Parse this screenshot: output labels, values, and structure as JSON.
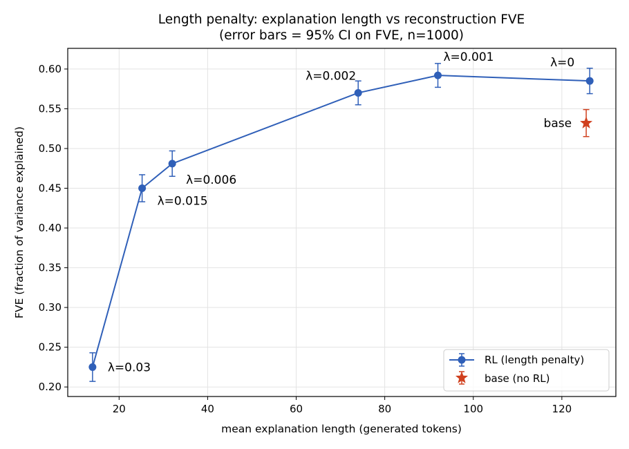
{
  "chart_data": {
    "type": "line",
    "title": "Length penalty: explanation length vs reconstruction FVE",
    "subtitle": "(error bars = 95% CI on FVE, n=1000)",
    "xlabel": "mean explanation length (generated tokens)",
    "ylabel": "FVE (fraction of variance explained)",
    "xlim": [
      8.4,
      132.2
    ],
    "ylim": [
      0.188,
      0.626
    ],
    "xticks": [
      20,
      40,
      60,
      80,
      100,
      120
    ],
    "yticks": [
      0.2,
      0.25,
      0.3,
      0.35,
      0.4,
      0.45,
      0.5,
      0.55,
      0.6
    ],
    "xtick_labels": [
      "20",
      "40",
      "60",
      "80",
      "100",
      "120"
    ],
    "ytick_labels": [
      "0.20",
      "0.25",
      "0.30",
      "0.35",
      "0.40",
      "0.45",
      "0.50",
      "0.55",
      "0.60"
    ],
    "grid": true,
    "legend_position": "lower-right",
    "series": [
      {
        "name": "RL (length penalty)",
        "marker": "circle",
        "color": "#2f5fb8",
        "points": [
          {
            "x": 14.0,
            "y": 0.225,
            "ci_low": 0.207,
            "ci_high": 0.243,
            "label": "λ=0.03"
          },
          {
            "x": 25.2,
            "y": 0.45,
            "ci_low": 0.433,
            "ci_high": 0.467,
            "label": "λ=0.015"
          },
          {
            "x": 32.0,
            "y": 0.481,
            "ci_low": 0.465,
            "ci_high": 0.497,
            "label": "λ=0.006"
          },
          {
            "x": 74.0,
            "y": 0.57,
            "ci_low": 0.555,
            "ci_high": 0.585,
            "label": "λ=0.002"
          },
          {
            "x": 92.0,
            "y": 0.592,
            "ci_low": 0.577,
            "ci_high": 0.607,
            "label": "λ=0.001"
          },
          {
            "x": 126.3,
            "y": 0.585,
            "ci_low": 0.569,
            "ci_high": 0.601,
            "label": "λ=0"
          }
        ]
      },
      {
        "name": "base (no RL)",
        "marker": "star",
        "color": "#d0401e",
        "points": [
          {
            "x": 125.5,
            "y": 0.532,
            "ci_low": 0.515,
            "ci_high": 0.549,
            "label": "base"
          }
        ]
      }
    ]
  }
}
